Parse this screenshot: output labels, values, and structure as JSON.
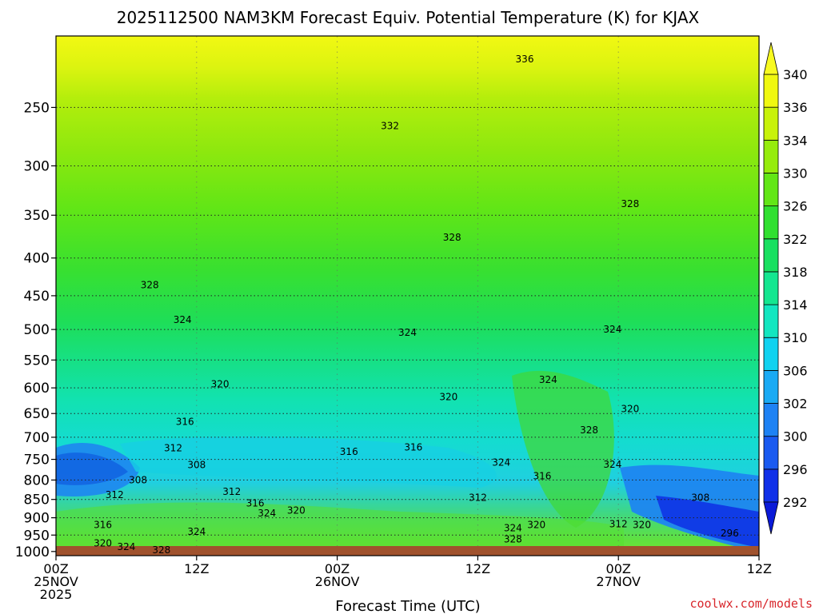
{
  "chart_data": {
    "type": "heatmap",
    "title": "2025112500 NAM3KM Forecast Equiv. Potential Temperature (K) for KJAX",
    "xlabel": "Forecast Time (UTC)",
    "ylabel": "",
    "credit": "coolwx.com/models",
    "x_ticks": [
      {
        "hour": 0,
        "lines": [
          "00Z",
          "25NOV",
          "2025"
        ]
      },
      {
        "hour": 12,
        "lines": [
          "12Z"
        ]
      },
      {
        "hour": 24,
        "lines": [
          "00Z",
          "26NOV"
        ]
      },
      {
        "hour": 36,
        "lines": [
          "12Z"
        ]
      },
      {
        "hour": 48,
        "lines": [
          "00Z",
          "27NOV"
        ]
      },
      {
        "hour": 60,
        "lines": [
          "12Z"
        ]
      }
    ],
    "xlim": [
      0,
      60
    ],
    "y_ticks": [
      250,
      300,
      350,
      400,
      450,
      500,
      550,
      600,
      650,
      700,
      750,
      800,
      850,
      900,
      950,
      1000
    ],
    "ylim_hpa": [
      200,
      1013
    ],
    "colorbar": {
      "levels": [
        292,
        296,
        300,
        302,
        306,
        310,
        314,
        318,
        322,
        326,
        330,
        334,
        336,
        340
      ],
      "colors": [
        "#1030e8",
        "#1a5af0",
        "#1e82f4",
        "#1aaaf4",
        "#10d2f0",
        "#12e6c0",
        "#14e690",
        "#18e060",
        "#30e030",
        "#62e616",
        "#96ec0c",
        "#c8f20a",
        "#f0f810"
      ],
      "low_color": "#0a1ad8",
      "high_color": "#f8fa20"
    },
    "contour_labels": [
      {
        "text": "336",
        "hour": 40.0,
        "hpa": 215
      },
      {
        "text": "332",
        "hour": 28.5,
        "hpa": 265
      },
      {
        "text": "328",
        "hour": 49.0,
        "hpa": 338
      },
      {
        "text": "328",
        "hour": 33.8,
        "hpa": 375
      },
      {
        "text": "328",
        "hour": 8.0,
        "hpa": 435
      },
      {
        "text": "324",
        "hour": 10.8,
        "hpa": 485
      },
      {
        "text": "324",
        "hour": 30.0,
        "hpa": 505
      },
      {
        "text": "324",
        "hour": 47.5,
        "hpa": 500
      },
      {
        "text": "324",
        "hour": 42.0,
        "hpa": 585
      },
      {
        "text": "320",
        "hour": 14.0,
        "hpa": 593
      },
      {
        "text": "320",
        "hour": 33.5,
        "hpa": 617
      },
      {
        "text": "320",
        "hour": 49.0,
        "hpa": 641
      },
      {
        "text": "316",
        "hour": 11.0,
        "hpa": 667
      },
      {
        "text": "316",
        "hour": 25.0,
        "hpa": 732
      },
      {
        "text": "316",
        "hour": 30.5,
        "hpa": 722
      },
      {
        "text": "312",
        "hour": 10.0,
        "hpa": 724
      },
      {
        "text": "308",
        "hour": 12.0,
        "hpa": 763
      },
      {
        "text": "308",
        "hour": 7.0,
        "hpa": 800
      },
      {
        "text": "312",
        "hour": 5.0,
        "hpa": 838
      },
      {
        "text": "312",
        "hour": 15.0,
        "hpa": 830
      },
      {
        "text": "316",
        "hour": 17.0,
        "hpa": 860
      },
      {
        "text": "312",
        "hour": 36.0,
        "hpa": 845
      },
      {
        "text": "316",
        "hour": 41.5,
        "hpa": 790
      },
      {
        "text": "328",
        "hour": 45.5,
        "hpa": 685
      },
      {
        "text": "324",
        "hour": 47.5,
        "hpa": 762
      },
      {
        "text": "324",
        "hour": 38.0,
        "hpa": 757
      },
      {
        "text": "324",
        "hour": 39.0,
        "hpa": 930
      },
      {
        "text": "320",
        "hour": 41.0,
        "hpa": 920
      },
      {
        "text": "328",
        "hour": 39.0,
        "hpa": 963
      },
      {
        "text": "324",
        "hour": 18.0,
        "hpa": 888
      },
      {
        "text": "320",
        "hour": 20.5,
        "hpa": 880
      },
      {
        "text": "324",
        "hour": 12.0,
        "hpa": 940
      },
      {
        "text": "316",
        "hour": 4.0,
        "hpa": 920
      },
      {
        "text": "320",
        "hour": 4.0,
        "hpa": 975
      },
      {
        "text": "324",
        "hour": 6.0,
        "hpa": 985
      },
      {
        "text": "328",
        "hour": 9.0,
        "hpa": 995
      },
      {
        "text": "312",
        "hour": 48.0,
        "hpa": 918
      },
      {
        "text": "320",
        "hour": 50.0,
        "hpa": 920
      },
      {
        "text": "308",
        "hour": 55.0,
        "hpa": 845
      },
      {
        "text": "296",
        "hour": 57.5,
        "hpa": 945
      }
    ]
  }
}
